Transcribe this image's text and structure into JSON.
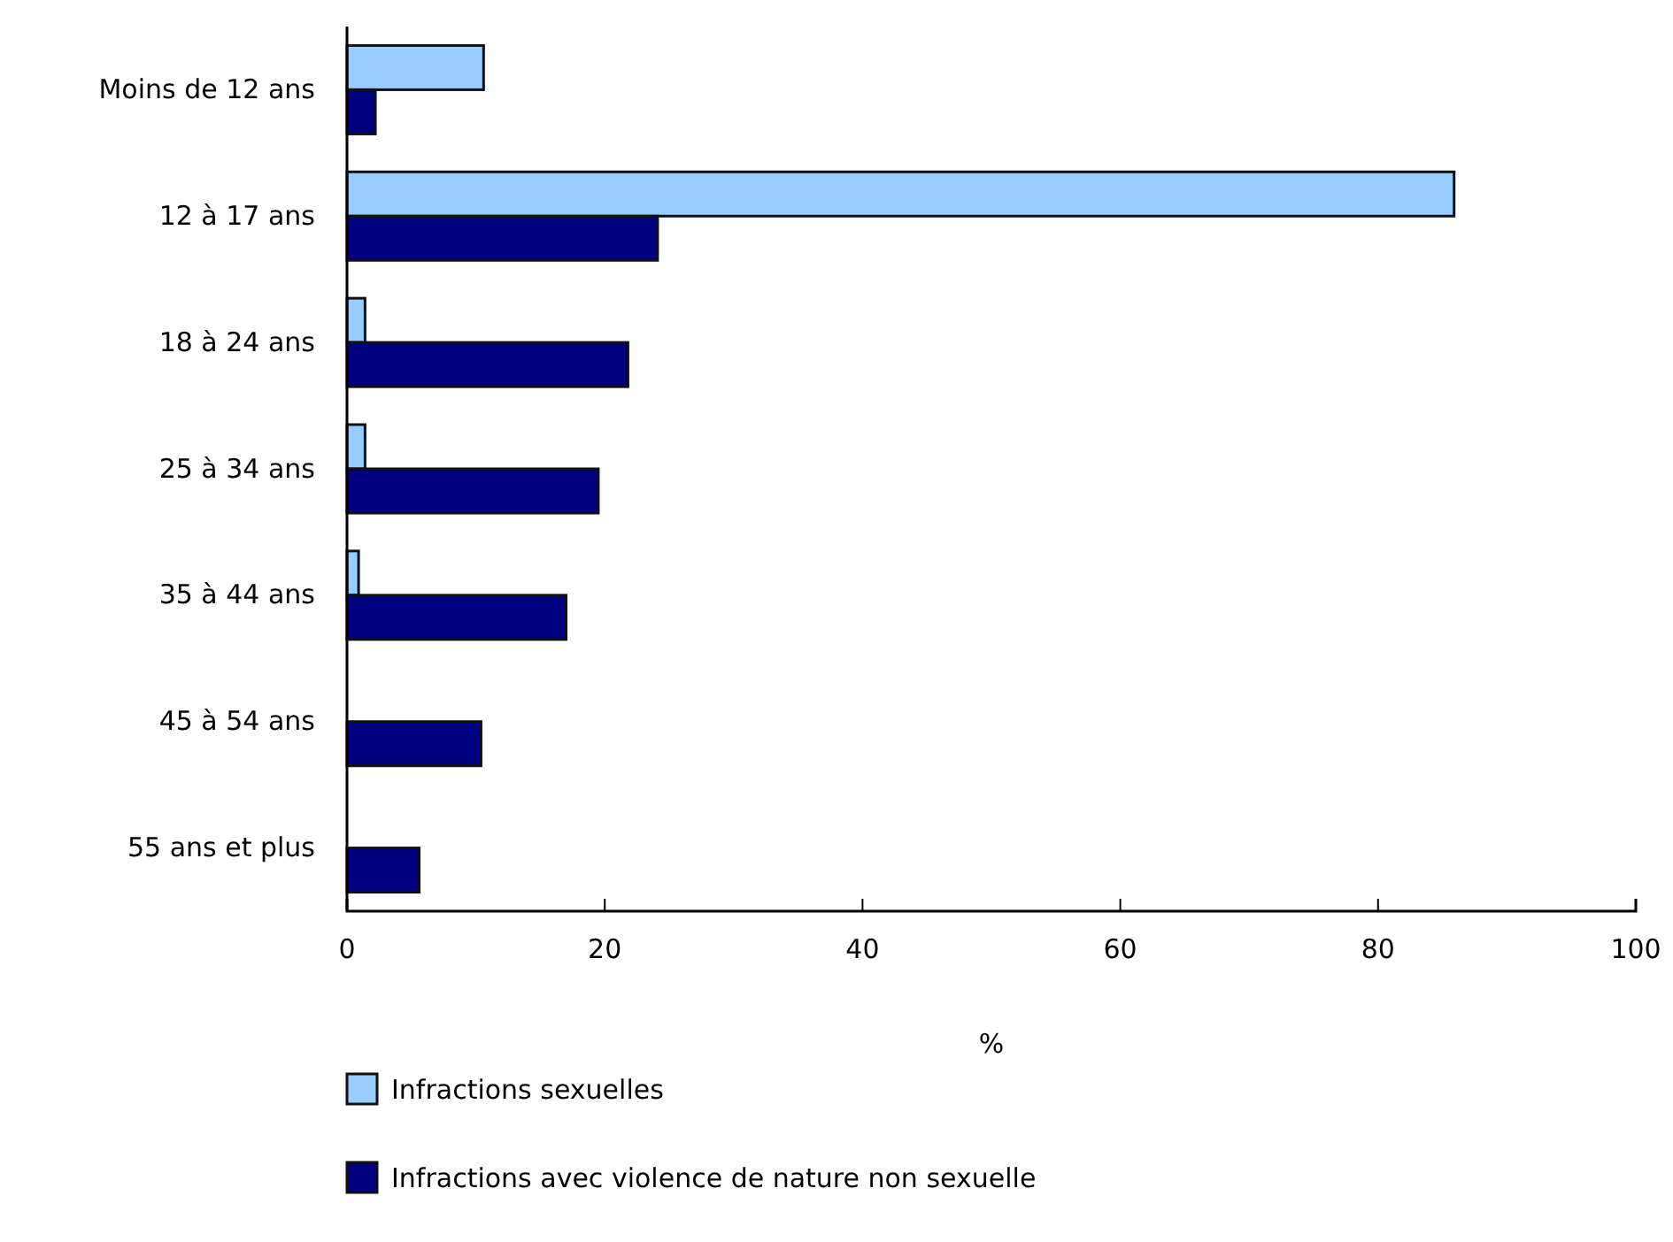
{
  "chart_data": {
    "type": "bar",
    "orientation": "horizontal",
    "xlabel": "%",
    "categories": [
      "Moins de 12 ans",
      "12 à 17 ans",
      "18 à 24 ans",
      "25 à 34 ans",
      "35 à 44 ans",
      "45 à 54 ans",
      "55 ans et plus"
    ],
    "series": [
      {
        "name": "Infractions sexuelles",
        "color": "#99ccff",
        "values": [
          10.6,
          85.9,
          1.4,
          1.4,
          0.9,
          0,
          0
        ]
      },
      {
        "name": "Infractions avec violence de nature non sexuelle",
        "color": "#000080",
        "values": [
          2.2,
          24.1,
          21.8,
          19.5,
          17.0,
          10.4,
          5.6
        ]
      }
    ],
    "xlim": [
      0,
      100
    ],
    "xticks": [
      0,
      20,
      40,
      60,
      80,
      100
    ],
    "grid": false,
    "legend": "bottom"
  }
}
